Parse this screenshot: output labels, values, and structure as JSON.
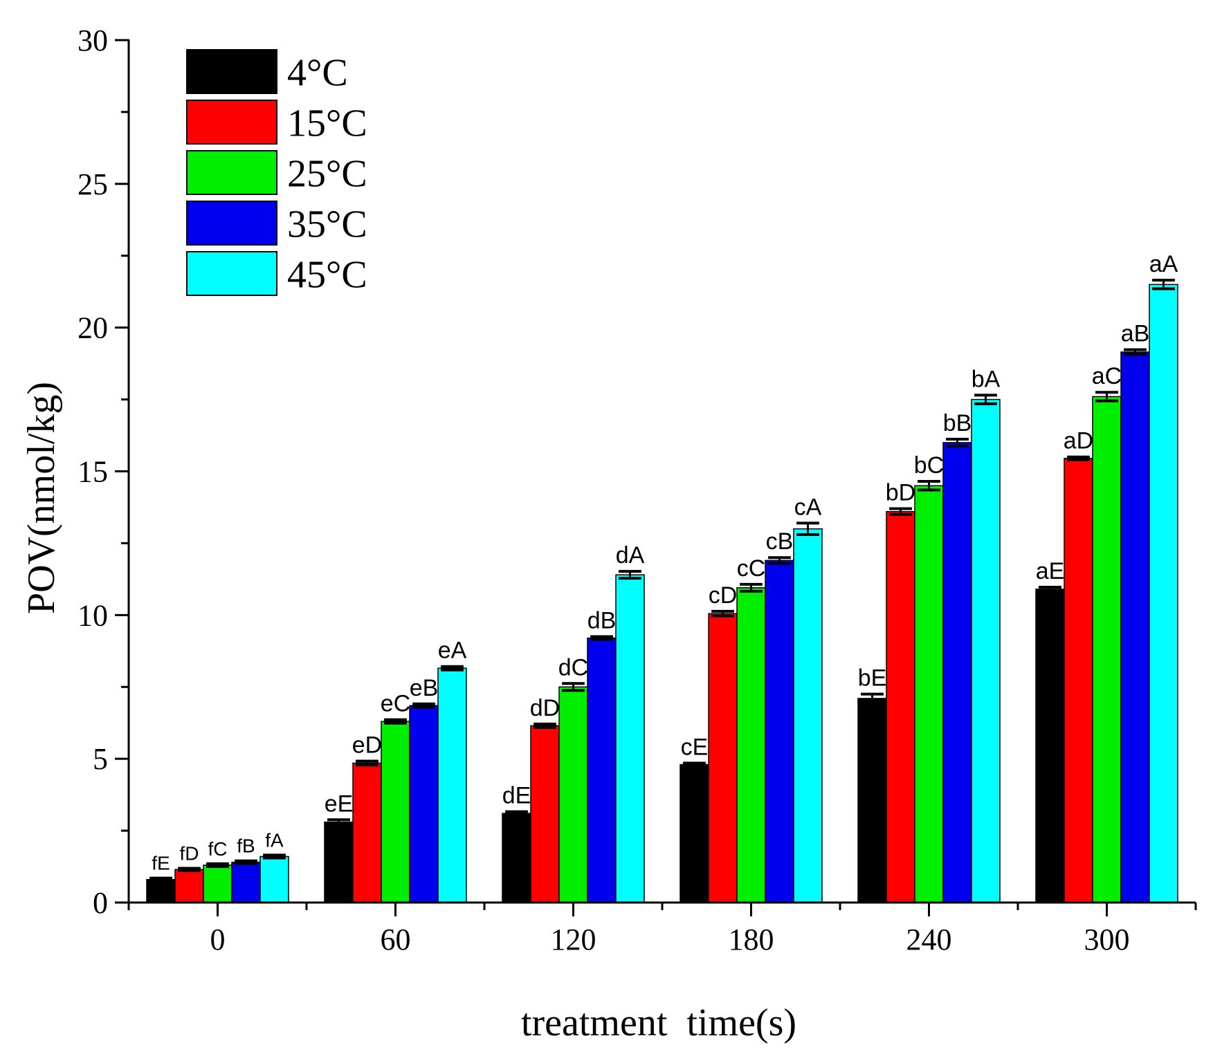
{
  "chart_data": {
    "type": "bar",
    "title": "",
    "xlabel": "treatment  time(s)",
    "ylabel": "POV(nmol/kg)",
    "categories": [
      "0",
      "60",
      "120",
      "180",
      "240",
      "300"
    ],
    "ylim": [
      0,
      30
    ],
    "yticks": [
      "0",
      "5",
      "10",
      "15",
      "20",
      "25",
      "30"
    ],
    "grid": false,
    "legend_position": "top-left",
    "series": [
      {
        "name": "4°C",
        "color": "#000000",
        "values": [
          0.8,
          2.8,
          3.1,
          4.8,
          7.1,
          10.9
        ],
        "errors": [
          0.05,
          0.08,
          0.06,
          0.05,
          0.15,
          0.07
        ],
        "labels": [
          "fE",
          "eE",
          "dE",
          "cE",
          "bE",
          "aE"
        ]
      },
      {
        "name": "15°C",
        "color": "#ff0000",
        "values": [
          1.15,
          4.85,
          6.15,
          10.05,
          13.6,
          15.45
        ],
        "errors": [
          0.04,
          0.07,
          0.06,
          0.08,
          0.1,
          0.05
        ],
        "labels": [
          "fD",
          "eD",
          "dD",
          "cD",
          "bD",
          "aD"
        ]
      },
      {
        "name": "25°C",
        "color": "#00ee00",
        "values": [
          1.3,
          6.3,
          7.5,
          10.95,
          14.5,
          17.6
        ],
        "errors": [
          0.05,
          0.06,
          0.12,
          0.12,
          0.15,
          0.15
        ],
        "labels": [
          "fC",
          "eC",
          "dC",
          "cC",
          "bC",
          "aC"
        ]
      },
      {
        "name": "35°C",
        "color": "#0000ee",
        "values": [
          1.4,
          6.85,
          9.2,
          11.9,
          16.0,
          19.15
        ],
        "errors": [
          0.05,
          0.06,
          0.05,
          0.1,
          0.12,
          0.08
        ],
        "labels": [
          "fB",
          "eB",
          "dB",
          "cB",
          "bB",
          "aB"
        ]
      },
      {
        "name": "45°C",
        "color": "#00ffff",
        "values": [
          1.6,
          8.15,
          11.4,
          13.0,
          17.5,
          21.5
        ],
        "errors": [
          0.05,
          0.06,
          0.12,
          0.2,
          0.15,
          0.15
        ],
        "labels": [
          "fA",
          "eA",
          "dA",
          "cA",
          "bA",
          "aA"
        ]
      }
    ]
  }
}
